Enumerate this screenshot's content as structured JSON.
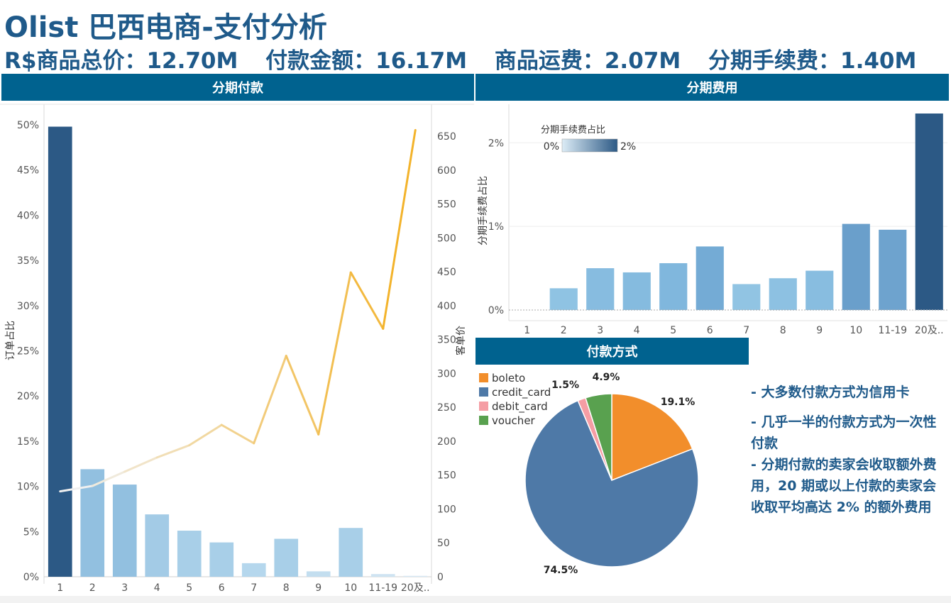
{
  "header": {
    "title": "Olist  巴西电商-支付分析",
    "kpis": [
      "R$商品总价：12.70M",
      "付款金额：16.17M",
      "商品运费：2.07M",
      "分期手续费：1.40M"
    ]
  },
  "sections": {
    "installments": "分期付款",
    "fees": "分期费用",
    "payment_method": "付款方式"
  },
  "notes": [
    "- 大多数付款方式为信用卡",
    "- 几乎一半的付款方式为一次性付款",
    "- 分期付款的卖家会收取额外费用，20 期或以上付款的卖家会收取平均高达 2% 的额外费用"
  ],
  "chart_data": [
    {
      "type": "bar",
      "categories": [
        "1",
        "2",
        "3",
        "4",
        "5",
        "6",
        "7",
        "8",
        "9",
        "10",
        "11-19",
        "20及.."
      ],
      "series": [
        {
          "values": [
            49.8,
            11.9,
            10.2,
            6.9,
            5.1,
            3.8,
            1.5,
            4.2,
            0.6,
            5.4,
            0.3,
            0.1
          ]
        }
      ],
      "line": {
        "values": [
          126,
          134,
          155,
          176,
          194,
          224,
          197,
          326,
          210,
          449,
          366,
          659
        ]
      },
      "bar_colors": [
        "#2c5985",
        "#92c0e0",
        "#92c0e0",
        "#a3cbe6",
        "#a8cfe8",
        "#a8cfe8",
        "#b5d7ed",
        "#a8cfe8",
        "#c3deef",
        "#a8cfe8",
        "#cfe4f2",
        "#d6e8f4"
      ],
      "ylabel": "订单占比",
      "ylabel_right": "客单价",
      "yticks": [
        "0%",
        "5%",
        "10%",
        "15%",
        "20%",
        "25%",
        "30%",
        "35%",
        "40%",
        "45%",
        "50%"
      ],
      "yticks_right": [
        "0",
        "50",
        "100",
        "150",
        "200",
        "250",
        "300",
        "350",
        "400",
        "450",
        "500",
        "550",
        "600",
        "650"
      ],
      "ylim": [
        0,
        50
      ],
      "ylim_right": [
        0,
        650
      ],
      "line_color_start": "#f0f0f0",
      "line_color_end": "#f3b32b"
    },
    {
      "type": "bar",
      "categories": [
        "1",
        "2",
        "3",
        "4",
        "5",
        "6",
        "7",
        "8",
        "9",
        "10",
        "11-19",
        "20及.."
      ],
      "values": [
        0,
        0.26,
        0.5,
        0.45,
        0.56,
        0.76,
        0.31,
        0.38,
        0.47,
        1.03,
        0.96,
        2.35
      ],
      "bar_colors": [
        "#ffffff",
        "#8fc3e3",
        "#87bce0",
        "#85bbdf",
        "#80b7dd",
        "#74abd5",
        "#91c4e3",
        "#8dc1e2",
        "#88bde0",
        "#6a9fcb",
        "#6ea3ce",
        "#2c5985"
      ],
      "ylabel": "分期手续费占比",
      "yticks": [
        "0%",
        "1%",
        "2%"
      ],
      "ylim": [
        0,
        2.35
      ],
      "legend": {
        "title": "分期手续费占比",
        "min": "0%",
        "max": "2%",
        "placement": "top-left"
      }
    },
    {
      "type": "pie",
      "labels": [
        "boleto",
        "credit_card",
        "debit_card",
        "voucher"
      ],
      "values": [
        19.1,
        74.5,
        1.5,
        4.9
      ],
      "value_labels": [
        "19.1%",
        "74.5%",
        "1.5%",
        "4.9%"
      ],
      "colors": [
        "#f28e2b",
        "#4e79a7",
        "#f59da4",
        "#59a14f"
      ],
      "legend": "top-left"
    }
  ]
}
